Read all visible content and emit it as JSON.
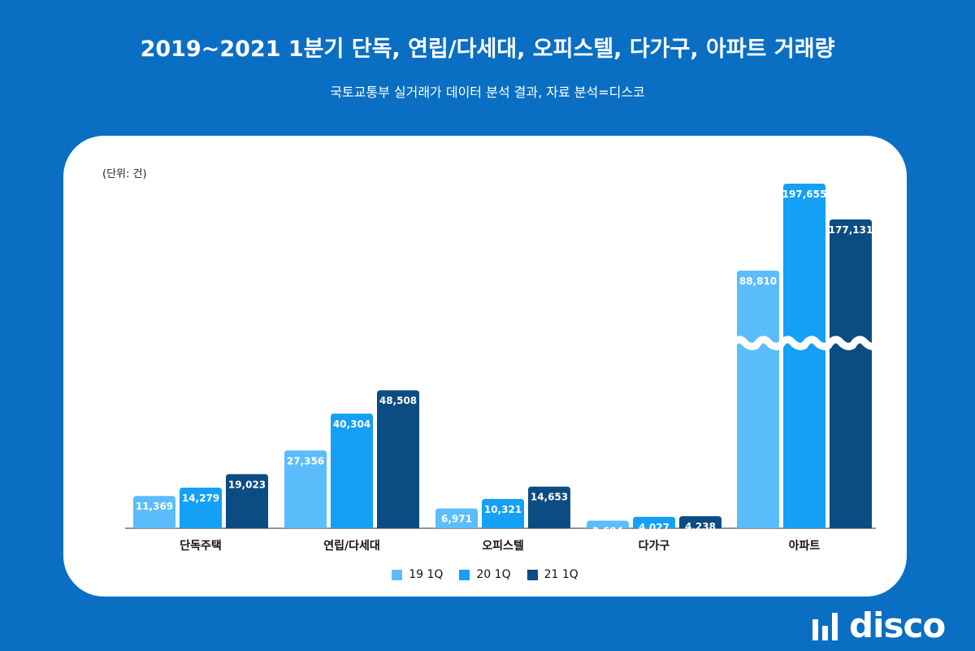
{
  "header": {
    "title": "2019~2021 1분기 단독, 연립/다세대, 오피스텔, 다가구, 아파트 거래량",
    "subtitle": "국토교통부 실거래가 데이터 분석 결과, 자료 분석=디스코"
  },
  "brand": {
    "name": "disco"
  },
  "chart_data": {
    "type": "bar",
    "title": "2019~2021 1분기 단독, 연립/다세대, 오피스텔, 다가구, 아파트 거래량",
    "unit_label": "(단위: 건)",
    "categories": [
      "단독주택",
      "연립/다세대",
      "오피스텔",
      "다가구",
      "아파트"
    ],
    "series": [
      {
        "name": "19 1Q",
        "color": "#5bbdfc",
        "values": [
          11369,
          27356,
          6971,
          2684,
          88810
        ]
      },
      {
        "name": "20 1Q",
        "color": "#14a0f5",
        "values": [
          14279,
          40304,
          10321,
          4027,
          197655
        ]
      },
      {
        "name": "21 1Q",
        "color": "#0b4c82",
        "values": [
          19023,
          48508,
          14653,
          4238,
          177131
        ]
      }
    ],
    "axis_break": {
      "category": "아파트",
      "style": "wavy"
    },
    "legend": "bottom-center"
  }
}
